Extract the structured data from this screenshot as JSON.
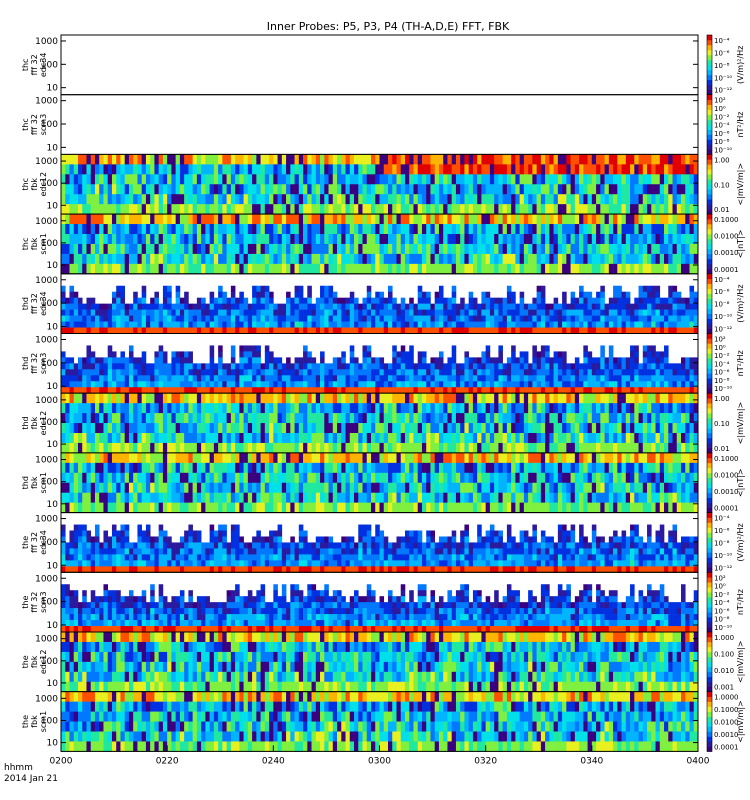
{
  "title": "Inner Probes: P5, P3, P4 (TH-A,D,E) FFT, FBK",
  "footer": {
    "time_format": "hhmm",
    "date": "2014 Jan 21"
  },
  "chart_data": {
    "type": "heatmap",
    "x_ticks": [
      "0200",
      "0220",
      "0240",
      "0300",
      "0320",
      "0340",
      "0400"
    ],
    "x_range_minutes": [
      0,
      120
    ],
    "y_scale": "log",
    "panels": [
      {
        "probe": "thc",
        "type": "fff 32",
        "channel": "edc34",
        "yticks": [
          "10",
          "100",
          "1000"
        ],
        "ylim": [
          5,
          1800
        ],
        "kind": "fff",
        "has_data": false,
        "cbar_ticks": [
          "10⁻⁴",
          "10⁻⁶",
          "10⁻⁸",
          "10⁻¹⁰",
          "10⁻¹²"
        ],
        "cbar_label": "(V/m)²/Hz"
      },
      {
        "probe": "thc",
        "type": "fff 32",
        "channel": "scm3",
        "yticks": [
          "10",
          "100",
          "1000"
        ],
        "ylim": [
          5,
          1800
        ],
        "kind": "fff",
        "has_data": false,
        "cbar_ticks": [
          "10²",
          "10⁰",
          "10⁻²",
          "10⁻⁴",
          "10⁻⁶",
          "10⁻⁸",
          "10⁻¹⁰"
        ],
        "cbar_label": "nT²/Hz"
      },
      {
        "probe": "thc",
        "type": "fbk",
        "channel": "edc12",
        "yticks": [
          "10",
          "100",
          "1000"
        ],
        "ylim": [
          4,
          2000
        ],
        "kind": "fbk",
        "has_data": true,
        "cbar_ticks": [
          "1.00",
          "0.10",
          "0.01"
        ],
        "cbar_label": "<|mV/m|>"
      },
      {
        "probe": "thc",
        "type": "fbk",
        "channel": "scm1",
        "yticks": [
          "10",
          "100",
          "1000"
        ],
        "ylim": [
          4,
          2000
        ],
        "kind": "fbk",
        "has_data": true,
        "cbar_ticks": [
          "0.1000",
          "0.0100",
          "0.0010",
          "0.0001"
        ],
        "cbar_label": "<|nT|>"
      },
      {
        "probe": "thd",
        "type": "fff 32",
        "channel": "edc34",
        "yticks": [
          "10",
          "100",
          "1000"
        ],
        "ylim": [
          5,
          1800
        ],
        "kind": "fff",
        "has_data": true,
        "cbar_ticks": [
          "10⁻⁴",
          "10⁻⁶",
          "10⁻⁸",
          "10⁻¹⁰",
          "10⁻¹²"
        ],
        "cbar_label": "(V/m)²/Hz"
      },
      {
        "probe": "thd",
        "type": "fff 32",
        "channel": "scm3",
        "yticks": [
          "10",
          "100",
          "1000"
        ],
        "ylim": [
          5,
          1800
        ],
        "kind": "fff",
        "has_data": true,
        "cbar_ticks": [
          "10²",
          "10⁰",
          "10⁻²",
          "10⁻⁴",
          "10⁻⁶",
          "10⁻⁸",
          "10⁻¹⁰"
        ],
        "cbar_label": "nT²/Hz"
      },
      {
        "probe": "thd",
        "type": "fbk",
        "channel": "edc12",
        "yticks": [
          "10",
          "100",
          "1000"
        ],
        "ylim": [
          4,
          2000
        ],
        "kind": "fbk",
        "has_data": true,
        "cbar_ticks": [
          "1.00",
          "0.10",
          "0.01"
        ],
        "cbar_label": "<|mV/m|>"
      },
      {
        "probe": "thd",
        "type": "fbk",
        "channel": "scm1",
        "yticks": [
          "10",
          "100",
          "1000"
        ],
        "ylim": [
          4,
          2000
        ],
        "kind": "fbk",
        "has_data": true,
        "cbar_ticks": [
          "0.1000",
          "0.0100",
          "0.0010",
          "0.0001"
        ],
        "cbar_label": "<|nT|>"
      },
      {
        "probe": "the",
        "type": "fff 32",
        "channel": "edc34",
        "yticks": [
          "10",
          "100",
          "1000"
        ],
        "ylim": [
          5,
          1800
        ],
        "kind": "fff",
        "has_data": true,
        "cbar_ticks": [
          "10⁻⁴",
          "10⁻⁶",
          "10⁻⁸",
          "10⁻¹⁰",
          "10⁻¹²"
        ],
        "cbar_label": "(V/m)²/Hz"
      },
      {
        "probe": "the",
        "type": "fff 32",
        "channel": "scm3",
        "yticks": [
          "10",
          "100",
          "1000"
        ],
        "ylim": [
          5,
          1800
        ],
        "kind": "fff",
        "has_data": true,
        "cbar_ticks": [
          "10²",
          "10⁰",
          "10⁻²",
          "10⁻⁴",
          "10⁻⁶",
          "10⁻⁸",
          "10⁻¹⁰"
        ],
        "cbar_label": "nT²/Hz"
      },
      {
        "probe": "the",
        "type": "fbk",
        "channel": "edc12",
        "yticks": [
          "10",
          "100",
          "1000"
        ],
        "ylim": [
          4,
          2000
        ],
        "kind": "fbk",
        "has_data": true,
        "cbar_ticks": [
          "1.000",
          "0.100",
          "0.010",
          "0.001"
        ],
        "cbar_label": "<|mV/m|>"
      },
      {
        "probe": "the",
        "type": "fbk",
        "channel": "scm1",
        "yticks": [
          "10",
          "100",
          "1000"
        ],
        "ylim": [
          4,
          2000
        ],
        "kind": "fbk",
        "has_data": true,
        "cbar_ticks": [
          "1.0000",
          "0.1000",
          "0.0100",
          "0.0010",
          "0.0001"
        ],
        "cbar_label": "<|mV/m|>"
      }
    ],
    "colorscale": [
      "#3a0080",
      "#2a1aa0",
      "#0030e0",
      "#0078ff",
      "#00b4ff",
      "#00e0e8",
      "#20e8a0",
      "#80f040",
      "#e8f020",
      "#ffb400",
      "#ff5000",
      "#e00000"
    ]
  }
}
